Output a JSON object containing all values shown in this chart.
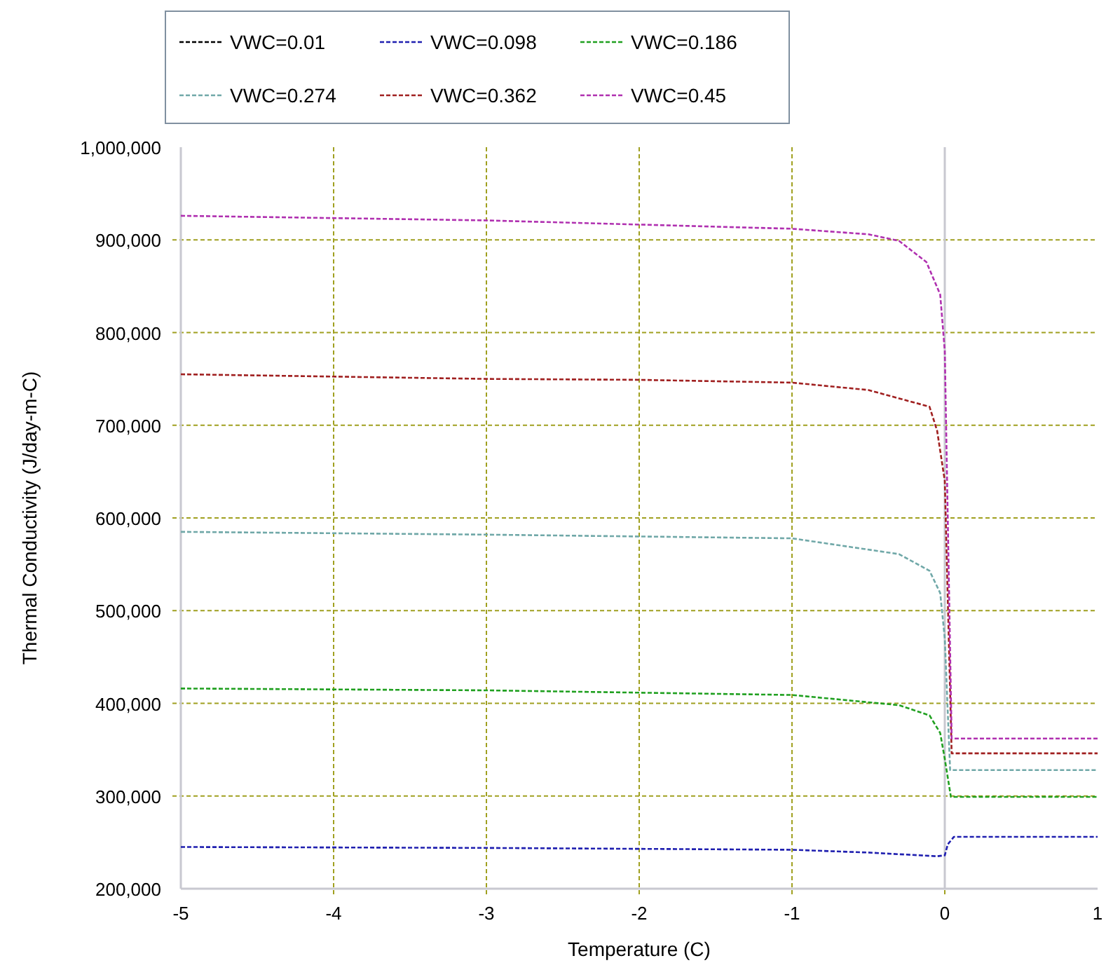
{
  "chart_data": {
    "type": "line",
    "xlabel": "Temperature (C)",
    "ylabel": "Thermal Conductivity (J/day-m-C)",
    "xlim": [
      -5,
      1
    ],
    "xticks": [
      -5,
      -4,
      -3,
      -2,
      -1,
      0,
      1
    ],
    "ylim": [
      200000,
      1000000
    ],
    "yticks": [
      {
        "value": 200000,
        "label": "200,000"
      },
      {
        "value": 300000,
        "label": "300,000"
      },
      {
        "value": 400000,
        "label": "400,000"
      },
      {
        "value": 500000,
        "label": "500,000"
      },
      {
        "value": 600000,
        "label": "600,000"
      },
      {
        "value": 700000,
        "label": "700,000"
      },
      {
        "value": 800000,
        "label": "800,000"
      },
      {
        "value": 900000,
        "label": "900,000"
      },
      {
        "value": 1000000,
        "label": "1,000,000"
      }
    ],
    "grid": true,
    "legend": "top",
    "line_style": "dashed",
    "ref_lines": [
      {
        "axis": "x",
        "value": 0,
        "color": "#c8c8d0",
        "line_style": "solid"
      }
    ],
    "series": [
      {
        "name": "VWC=0.01",
        "color": "#000000"
      },
      {
        "name": "VWC=0.098",
        "color": "#2020b0",
        "x": [
          -5,
          -3,
          -1,
          -0.5,
          -0.05,
          0,
          0.02,
          0.06,
          1
        ],
        "values": [
          245000,
          244000,
          242000,
          239000,
          235000,
          236000,
          248000,
          256000,
          256000
        ]
      },
      {
        "name": "VWC=0.186",
        "color": "#20a020",
        "x": [
          -5,
          -3,
          -1,
          -0.3,
          -0.1,
          -0.03,
          0,
          0.04,
          1
        ],
        "values": [
          416000,
          414000,
          409000,
          398000,
          387000,
          368000,
          340000,
          299000,
          299000
        ]
      },
      {
        "name": "VWC=0.274",
        "color": "#70a8a8",
        "x": [
          -5,
          -3,
          -1,
          -0.3,
          -0.1,
          -0.03,
          0,
          0.035,
          1
        ],
        "values": [
          585000,
          582000,
          578000,
          561000,
          543000,
          519000,
          470000,
          328000,
          328000
        ]
      },
      {
        "name": "VWC=0.362",
        "color": "#a02020",
        "x": [
          -5,
          -3,
          -2,
          -1,
          -0.5,
          -0.1,
          -0.05,
          0,
          0.045,
          1
        ],
        "values": [
          755000,
          750000,
          749000,
          746000,
          738000,
          720000,
          694000,
          640000,
          346000,
          346000
        ]
      },
      {
        "name": "VWC=0.45",
        "color": "#b030b0",
        "x": [
          -5,
          -3,
          -1,
          -0.5,
          -0.3,
          -0.12,
          -0.03,
          0,
          0.045,
          1
        ],
        "values": [
          926000,
          921000,
          912000,
          906000,
          899000,
          876000,
          841000,
          780000,
          362000,
          362000
        ]
      }
    ]
  }
}
